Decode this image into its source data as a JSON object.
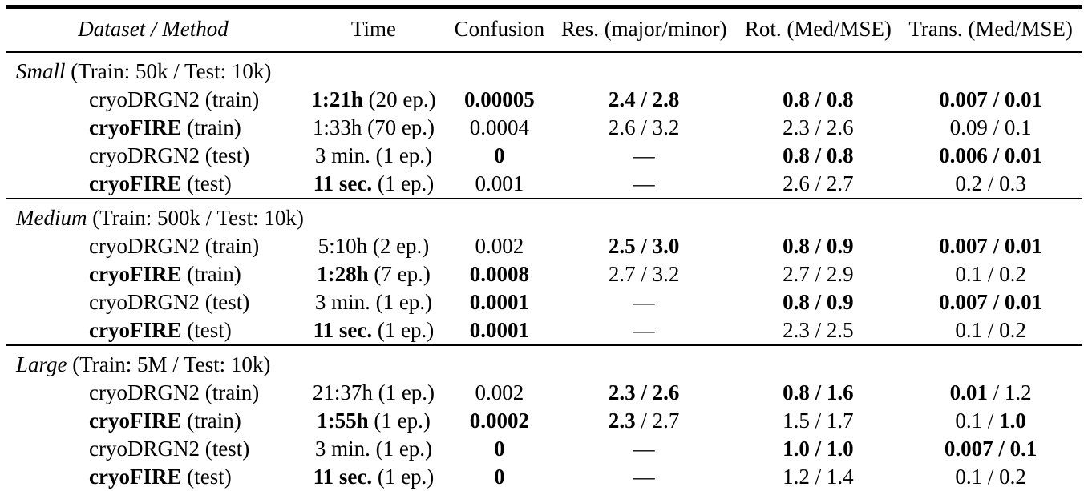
{
  "colors": {
    "background": "#ffffff",
    "text": "#000000",
    "rule": "#000000"
  },
  "table": {
    "columns": [
      {
        "label": "Dataset / Method",
        "italic": true
      },
      {
        "label": "Time",
        "italic": false
      },
      {
        "label": "Confusion",
        "italic": false
      },
      {
        "label": "Res. (major/minor)",
        "italic": false
      },
      {
        "label": "Rot. (Med/MSE)",
        "italic": false
      },
      {
        "label": "Trans. (Med/MSE)",
        "italic": false
      }
    ],
    "sections": [
      {
        "label": {
          "name": "Small",
          "info": "(Train: 50k / Test: 10k)"
        },
        "rows": [
          {
            "method": [
              {
                "t": "cryoDRGN2 (train)",
                "b": false
              }
            ],
            "cells": [
              [
                {
                  "t": "1:21h",
                  "b": true
                },
                {
                  "t": " (20 ep.)",
                  "b": false
                }
              ],
              [
                {
                  "t": "0.00005",
                  "b": true
                }
              ],
              [
                {
                  "t": "2.4 / 2.8",
                  "b": true
                }
              ],
              [
                {
                  "t": "0.8 / 0.8",
                  "b": true
                }
              ],
              [
                {
                  "t": "0.007 / 0.01",
                  "b": true
                }
              ]
            ]
          },
          {
            "method": [
              {
                "t": "cryoFIRE",
                "b": true
              },
              {
                "t": " (train)",
                "b": false
              }
            ],
            "cells": [
              [
                {
                  "t": "1:33h (70 ep.)",
                  "b": false
                }
              ],
              [
                {
                  "t": "0.0004",
                  "b": false
                }
              ],
              [
                {
                  "t": "2.6 / 3.2",
                  "b": false
                }
              ],
              [
                {
                  "t": "2.3 / 2.6",
                  "b": false
                }
              ],
              [
                {
                  "t": "0.09 / 0.1",
                  "b": false
                }
              ]
            ]
          },
          {
            "method": [
              {
                "t": "cryoDRGN2 (test)",
                "b": false
              }
            ],
            "cells": [
              [
                {
                  "t": "3 min. (1 ep.)",
                  "b": false
                }
              ],
              [
                {
                  "t": "0",
                  "b": true
                }
              ],
              [
                {
                  "t": "—",
                  "b": false
                }
              ],
              [
                {
                  "t": "0.8 / 0.8",
                  "b": true
                }
              ],
              [
                {
                  "t": "0.006 / 0.01",
                  "b": true
                }
              ]
            ]
          },
          {
            "method": [
              {
                "t": "cryoFIRE",
                "b": true
              },
              {
                "t": " (test)",
                "b": false
              }
            ],
            "cells": [
              [
                {
                  "t": "11 sec.",
                  "b": true
                },
                {
                  "t": " (1 ep.)",
                  "b": false
                }
              ],
              [
                {
                  "t": "0.001",
                  "b": false
                }
              ],
              [
                {
                  "t": "—",
                  "b": false
                }
              ],
              [
                {
                  "t": "2.6 / 2.7",
                  "b": false
                }
              ],
              [
                {
                  "t": "0.2 / 0.3",
                  "b": false
                }
              ]
            ]
          }
        ]
      },
      {
        "label": {
          "name": "Medium",
          "info": "(Train: 500k / Test: 10k)"
        },
        "rows": [
          {
            "method": [
              {
                "t": "cryoDRGN2 (train)",
                "b": false
              }
            ],
            "cells": [
              [
                {
                  "t": "5:10h (2 ep.)",
                  "b": false
                }
              ],
              [
                {
                  "t": "0.002",
                  "b": false
                }
              ],
              [
                {
                  "t": "2.5 / 3.0",
                  "b": true
                }
              ],
              [
                {
                  "t": "0.8 / 0.9",
                  "b": true
                }
              ],
              [
                {
                  "t": "0.007 / 0.01",
                  "b": true
                }
              ]
            ]
          },
          {
            "method": [
              {
                "t": "cryoFIRE",
                "b": true
              },
              {
                "t": " (train)",
                "b": false
              }
            ],
            "cells": [
              [
                {
                  "t": "1:28h",
                  "b": true
                },
                {
                  "t": " (7 ep.)",
                  "b": false
                }
              ],
              [
                {
                  "t": "0.0008",
                  "b": true
                }
              ],
              [
                {
                  "t": "2.7 / 3.2",
                  "b": false
                }
              ],
              [
                {
                  "t": "2.7 / 2.9",
                  "b": false
                }
              ],
              [
                {
                  "t": "0.1 / 0.2",
                  "b": false
                }
              ]
            ]
          },
          {
            "method": [
              {
                "t": "cryoDRGN2 (test)",
                "b": false
              }
            ],
            "cells": [
              [
                {
                  "t": "3 min. (1 ep.)",
                  "b": false
                }
              ],
              [
                {
                  "t": "0.0001",
                  "b": true
                }
              ],
              [
                {
                  "t": "—",
                  "b": false
                }
              ],
              [
                {
                  "t": "0.8 / 0.9",
                  "b": true
                }
              ],
              [
                {
                  "t": "0.007 / 0.01",
                  "b": true
                }
              ]
            ]
          },
          {
            "method": [
              {
                "t": "cryoFIRE",
                "b": true
              },
              {
                "t": " (test)",
                "b": false
              }
            ],
            "cells": [
              [
                {
                  "t": "11 sec.",
                  "b": true
                },
                {
                  "t": " (1 ep.)",
                  "b": false
                }
              ],
              [
                {
                  "t": "0.0001",
                  "b": true
                }
              ],
              [
                {
                  "t": "—",
                  "b": false
                }
              ],
              [
                {
                  "t": "2.3 / 2.5",
                  "b": false
                }
              ],
              [
                {
                  "t": "0.1 / 0.2",
                  "b": false
                }
              ]
            ]
          }
        ]
      },
      {
        "label": {
          "name": "Large",
          "info": "(Train: 5M / Test: 10k)"
        },
        "rows": [
          {
            "method": [
              {
                "t": "cryoDRGN2 (train)",
                "b": false
              }
            ],
            "cells": [
              [
                {
                  "t": "21:37h (1 ep.)",
                  "b": false
                }
              ],
              [
                {
                  "t": "0.002",
                  "b": false
                }
              ],
              [
                {
                  "t": "2.3 / 2.6",
                  "b": true
                }
              ],
              [
                {
                  "t": "0.8 / 1.6",
                  "b": true
                }
              ],
              [
                {
                  "t": "0.01",
                  "b": true
                },
                {
                  "t": " / 1.2",
                  "b": false
                }
              ]
            ]
          },
          {
            "method": [
              {
                "t": "cryoFIRE",
                "b": true
              },
              {
                "t": " (train)",
                "b": false
              }
            ],
            "cells": [
              [
                {
                  "t": "1:55h",
                  "b": true
                },
                {
                  "t": " (1 ep.)",
                  "b": false
                }
              ],
              [
                {
                  "t": "0.0002",
                  "b": true
                }
              ],
              [
                {
                  "t": "2.3",
                  "b": true
                },
                {
                  "t": " / 2.7",
                  "b": false
                }
              ],
              [
                {
                  "t": "1.5 / 1.7",
                  "b": false
                }
              ],
              [
                {
                  "t": "0.1 / ",
                  "b": false
                },
                {
                  "t": "1.0",
                  "b": true
                }
              ]
            ]
          },
          {
            "method": [
              {
                "t": "cryoDRGN2 (test)",
                "b": false
              }
            ],
            "cells": [
              [
                {
                  "t": "3 min. (1 ep.)",
                  "b": false
                }
              ],
              [
                {
                  "t": "0",
                  "b": true
                }
              ],
              [
                {
                  "t": "—",
                  "b": false
                }
              ],
              [
                {
                  "t": "1.0 / 1.0",
                  "b": true
                }
              ],
              [
                {
                  "t": "0.007 / 0.1",
                  "b": true
                }
              ]
            ]
          },
          {
            "method": [
              {
                "t": "cryoFIRE",
                "b": true
              },
              {
                "t": " (test)",
                "b": false
              }
            ],
            "cells": [
              [
                {
                  "t": "11 sec.",
                  "b": true
                },
                {
                  "t": " (1 ep.)",
                  "b": false
                }
              ],
              [
                {
                  "t": "0",
                  "b": true
                }
              ],
              [
                {
                  "t": "—",
                  "b": false
                }
              ],
              [
                {
                  "t": "1.2 / 1.4",
                  "b": false
                }
              ],
              [
                {
                  "t": "0.1 / 0.2",
                  "b": false
                }
              ]
            ]
          }
        ]
      }
    ]
  }
}
